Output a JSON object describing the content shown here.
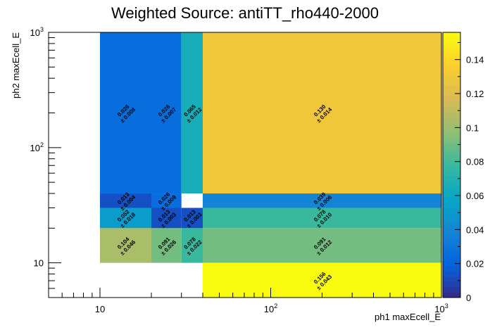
{
  "chart_data": {
    "type": "heatmap",
    "title": "Weighted Source: antiTT_rho440-2000",
    "xlabel": "ph1 maxEcell_E",
    "ylabel": "ph2 maxEcell_E",
    "x_scale": "log",
    "y_scale": "log",
    "xlim": [
      5,
      1000
    ],
    "ylim": [
      5,
      1000
    ],
    "x_tick_labels": [
      {
        "base": "10",
        "exp": ""
      },
      {
        "base": "10",
        "exp": "2"
      },
      {
        "base": "10",
        "exp": "3"
      }
    ],
    "y_tick_labels": [
      {
        "base": "10",
        "exp": ""
      },
      {
        "base": "10",
        "exp": "2"
      },
      {
        "base": "10",
        "exp": "3"
      }
    ],
    "x_bin_edges": [
      10,
      20,
      30,
      40,
      1000
    ],
    "y_bin_edges": [
      5,
      10,
      20,
      30,
      40,
      1000
    ],
    "cells": [
      {
        "x": [
          10,
          20
        ],
        "y": [
          40,
          1000
        ],
        "value": 0.026,
        "label": "0.026",
        "error": "± 0.008"
      },
      {
        "x": [
          20,
          30
        ],
        "y": [
          40,
          1000
        ],
        "value": 0.026,
        "label": "0.026",
        "error": "± 0.007"
      },
      {
        "x": [
          30,
          40
        ],
        "y": [
          40,
          1000
        ],
        "value": 0.065,
        "label": "0.065",
        "error": "± 0.012"
      },
      {
        "x": [
          40,
          1000
        ],
        "y": [
          40,
          1000
        ],
        "value": 0.13,
        "label": "0.130",
        "error": "± 0.014"
      },
      {
        "x": [
          10,
          20
        ],
        "y": [
          30,
          40
        ],
        "value": 0.013,
        "label": "0.013",
        "error": "± 0.004"
      },
      {
        "x": [
          20,
          30
        ],
        "y": [
          30,
          40
        ],
        "value": 0.026,
        "label": "0.026",
        "error": "± 0.009"
      },
      {
        "x": [
          40,
          1000
        ],
        "y": [
          30,
          40
        ],
        "value": 0.039,
        "label": "0.039",
        "error": "± 0.006"
      },
      {
        "x": [
          10,
          20
        ],
        "y": [
          20,
          30
        ],
        "value": 0.052,
        "label": "0.052",
        "error": "± 0.018"
      },
      {
        "x": [
          20,
          30
        ],
        "y": [
          20,
          30
        ],
        "value": 0.013,
        "label": "0.013",
        "error": "± 0.003"
      },
      {
        "x": [
          30,
          40
        ],
        "y": [
          20,
          30
        ],
        "value": 0.013,
        "label": "0.013",
        "error": "± 0.003"
      },
      {
        "x": [
          40,
          1000
        ],
        "y": [
          20,
          30
        ],
        "value": 0.078,
        "label": "0.078",
        "error": "± 0.010"
      },
      {
        "x": [
          10,
          20
        ],
        "y": [
          10,
          20
        ],
        "value": 0.104,
        "label": "0.104",
        "error": "± 0.046"
      },
      {
        "x": [
          20,
          30
        ],
        "y": [
          10,
          20
        ],
        "value": 0.091,
        "label": "0.091",
        "error": "± 0.026"
      },
      {
        "x": [
          30,
          40
        ],
        "y": [
          10,
          20
        ],
        "value": 0.078,
        "label": "0.078",
        "error": "± 0.022"
      },
      {
        "x": [
          40,
          1000
        ],
        "y": [
          10,
          20
        ],
        "value": 0.091,
        "label": "0.091",
        "error": "± 0.012"
      },
      {
        "x": [
          40,
          1000
        ],
        "y": [
          5,
          10
        ],
        "value": 0.156,
        "label": "0.156",
        "error": "± 0.043"
      }
    ],
    "colorbar": {
      "zlim": [
        0,
        0.156
      ],
      "tick_values": [
        0,
        0.02,
        0.04,
        0.06,
        0.08,
        0.1,
        0.12,
        0.14
      ],
      "tick_labels": [
        "0",
        "0.02",
        "0.04",
        "0.06",
        "0.08",
        "0.1",
        "0.12",
        "0.14"
      ],
      "palette": [
        "#352a87",
        "#0363e1",
        "#1485d4",
        "#06a7c6",
        "#38b99e",
        "#92bf73",
        "#d9ba56",
        "#fcce2e",
        "#f9fb0e"
      ]
    },
    "grid": false,
    "legend": "none"
  }
}
